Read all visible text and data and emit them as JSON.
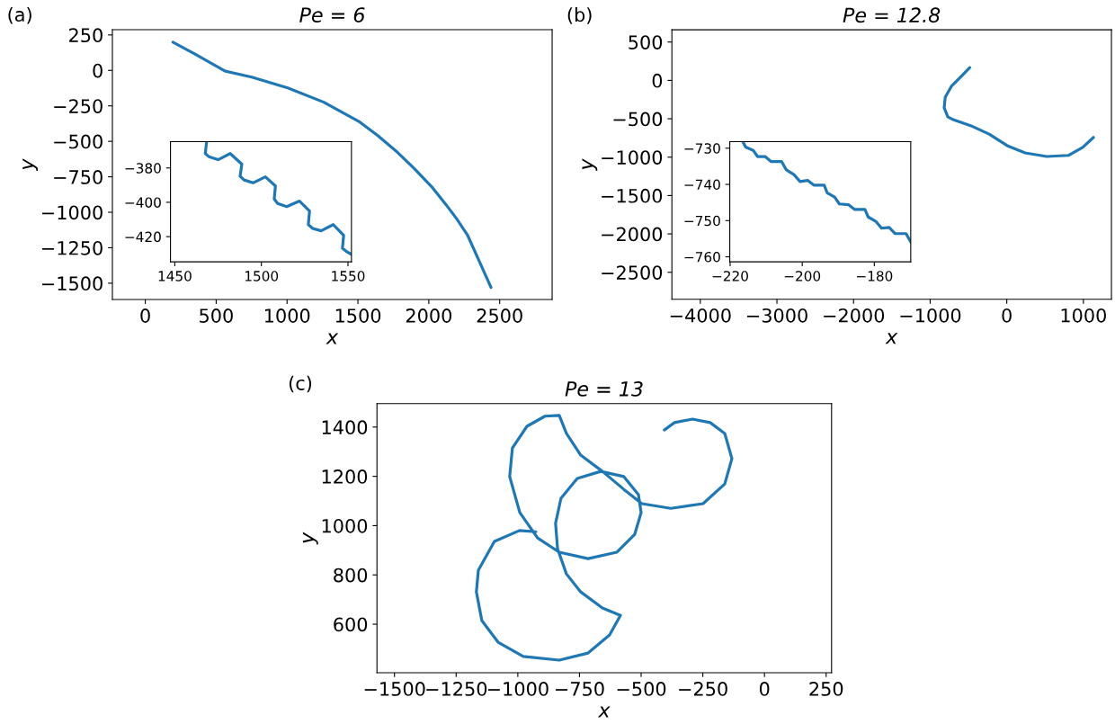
{
  "chart_data": [
    {
      "type": "line",
      "title": "Pe = 6",
      "xlabel": "x",
      "ylabel": "y",
      "annotations": [
        "(a)"
      ],
      "xlim": [
        -232,
        2870
      ],
      "ylim": [
        -1615,
        287
      ],
      "xticks": [
        0,
        500,
        1000,
        1500,
        2000,
        2500
      ],
      "yticks": [
        250,
        0,
        -250,
        -500,
        -750,
        -1000,
        -1250,
        -1500
      ],
      "series": [
        {
          "color": "#1f77b4",
          "x": [
            195,
            345,
            561,
            751,
            1005,
            1259,
            1513,
            1640,
            1767,
            1894,
            2020,
            2122,
            2198,
            2274,
            2325,
            2439
          ],
          "values": [
            199,
            118,
            -4,
            -47,
            -123,
            -224,
            -364,
            -460,
            -567,
            -688,
            -820,
            -947,
            -1048,
            -1163,
            -1277,
            -1530
          ]
        }
      ]
    },
    {
      "type": "line",
      "xlim": [
        1447.5,
        1552
      ],
      "ylim": [
        -434.7,
        -364.7
      ],
      "xticks": [
        1450,
        1500,
        1550
      ],
      "yticks": [
        -380,
        -400,
        -420
      ],
      "series": [
        {
          "color": "#1f77b4",
          "x": [
            1468.3,
            1467.6,
            1469.7,
            1475,
            1482,
            1488.7,
            1487.7,
            1490,
            1495.2,
            1502.3,
            1508.1,
            1507.4,
            1509.4,
            1514.6,
            1522,
            1527.8,
            1527.1,
            1529.6,
            1534.5,
            1541.5,
            1547.5,
            1546.8,
            1548.9,
            1552
          ],
          "values": [
            -365.1,
            -371.6,
            -373.4,
            -375.2,
            -371.6,
            -377.8,
            -384.8,
            -387,
            -388.7,
            -385.2,
            -390.5,
            -398.1,
            -400.7,
            -402.5,
            -399.3,
            -405.1,
            -413,
            -415.2,
            -416.6,
            -413,
            -419.2,
            -426.8,
            -428.5,
            -430.3
          ]
        }
      ]
    },
    {
      "type": "line",
      "title": "Pe = 12.8",
      "xlabel": "x",
      "ylabel": "y",
      "annotations": [
        "(b)"
      ],
      "xlim": [
        -4371,
        1366
      ],
      "ylim": [
        -2852,
        659
      ],
      "xticks": [
        -4000,
        -3000,
        -2000,
        -1000,
        0,
        1000
      ],
      "yticks": [
        500,
        0,
        -500,
        -1000,
        -1500,
        -2000,
        -2500
      ],
      "series": [
        {
          "color": "#1f77b4",
          "x": [
            -483,
            -605,
            -723,
            -803,
            -817,
            -770,
            -699,
            -465,
            -230,
            5,
            240,
            522,
            803,
            991,
            1132
          ],
          "values": [
            167,
            41,
            -77,
            -217,
            -358,
            -475,
            -512,
            -592,
            -700,
            -850,
            -944,
            -991,
            -977,
            -873,
            -742
          ]
        }
      ]
    },
    {
      "type": "line",
      "xlim": [
        -220.1,
        -169.9
      ],
      "ylim": [
        -761.4,
        -728.2
      ],
      "xticks": [
        -220,
        -200,
        -180
      ],
      "yticks": [
        -730,
        -740,
        -750,
        -760
      ],
      "series": [
        {
          "color": "#1f77b4",
          "x": [
            -216.4,
            -215.7,
            -213.6,
            -212.4,
            -210.3,
            -208.6,
            -205.7,
            -204.4,
            -202.3,
            -200.6,
            -198.5,
            -196.8,
            -193.9,
            -193.1,
            -191,
            -189.7,
            -187.2,
            -185.5,
            -182.6,
            -181.7,
            -179.6,
            -178,
            -175.9,
            -174.2,
            -171.2,
            -169.9
          ],
          "values": [
            -728.3,
            -729.7,
            -730.6,
            -732.3,
            -732.3,
            -733.7,
            -733.7,
            -736,
            -737.3,
            -739.2,
            -738.9,
            -740.2,
            -740.2,
            -742.3,
            -743.5,
            -745.4,
            -745.6,
            -746.9,
            -746.9,
            -749,
            -750.2,
            -752.1,
            -751.9,
            -753.6,
            -753.6,
            -755.9
          ]
        }
      ]
    },
    {
      "type": "line",
      "title": "Pe = 13",
      "xlabel": "x",
      "ylabel": "y",
      "annotations": [
        "(c)"
      ],
      "xlim": [
        -1571,
        272
      ],
      "ylim": [
        403,
        1495
      ],
      "xticks": [
        -1500,
        -1250,
        -1000,
        -750,
        -500,
        -250,
        0,
        250
      ],
      "yticks": [
        600,
        800,
        1000,
        1200,
        1400
      ],
      "series": [
        {
          "color": "#1f77b4",
          "x": [
            -927,
            -993,
            -1095,
            -1160,
            -1168,
            -1146,
            -1080,
            -978,
            -832,
            -715,
            -628,
            -584,
            -657,
            -745,
            -803,
            -839,
            -847,
            -825,
            -759,
            -664,
            -570,
            -511,
            -500,
            -526,
            -599,
            -715,
            -832,
            -920,
            -992,
            -1033,
            -1022,
            -963,
            -890,
            -832,
            -803,
            -745,
            -657,
            -570,
            -497,
            -380,
            -249,
            -161,
            -132,
            -161,
            -220,
            -292,
            -365,
            -406
          ],
          "values": [
            975,
            980,
            936,
            819,
            731,
            615,
            527,
            469,
            454,
            483,
            556,
            636,
            666,
            731,
            804,
            907,
            1009,
            1111,
            1191,
            1220,
            1199,
            1126,
            1053,
            965,
            892,
            866,
            892,
            950,
            1053,
            1199,
            1315,
            1403,
            1444,
            1447,
            1374,
            1286,
            1220,
            1147,
            1089,
            1070,
            1089,
            1169,
            1272,
            1374,
            1418,
            1432,
            1418,
            1388
          ]
        }
      ]
    }
  ]
}
